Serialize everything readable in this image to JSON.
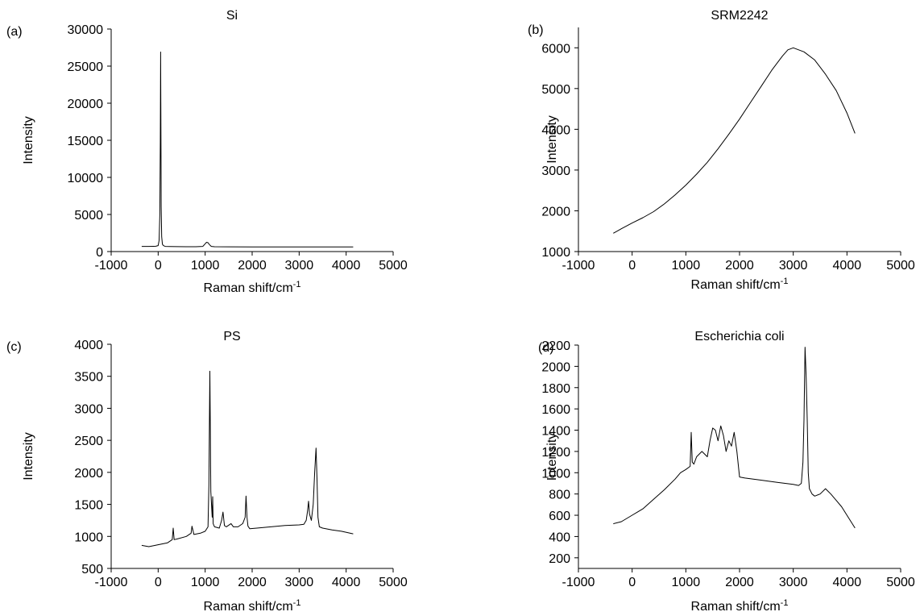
{
  "chart_data": [
    {
      "type": "line",
      "panel_label": "(a)",
      "title": "Si",
      "xlabel": "Raman shift/cm",
      "xlabel_sup": "-1",
      "ylabel": "Intensity",
      "xlim": [
        -1000,
        5000
      ],
      "ylim": [
        0,
        30000
      ],
      "xticks": [
        -1000,
        0,
        1000,
        2000,
        3000,
        4000,
        5000
      ],
      "yticks": [
        0,
        5000,
        10000,
        15000,
        20000,
        25000,
        30000
      ],
      "grid": false,
      "color": "#000000",
      "series": [
        {
          "x": [
            -350,
            -200,
            -100,
            -50,
            0,
            20,
            35,
            45,
            52,
            58,
            65,
            75,
            90,
            110,
            150,
            250,
            400,
            600,
            800,
            950,
            1000,
            1030,
            1060,
            1090,
            1130,
            1200,
            1500,
            2000,
            2500,
            3000,
            3500,
            4000,
            4150
          ],
          "y": [
            700,
            700,
            710,
            720,
            800,
            1500,
            5000,
            15000,
            26900,
            18000,
            6000,
            2000,
            1000,
            800,
            700,
            680,
            660,
            650,
            650,
            700,
            1050,
            1250,
            1200,
            950,
            700,
            650,
            640,
            630,
            630,
            620,
            620,
            620,
            620
          ]
        }
      ]
    },
    {
      "type": "line",
      "panel_label": "(b)",
      "title": "SRM2242",
      "xlabel": "Raman shift/cm",
      "xlabel_sup": "-1",
      "ylabel": "Intensity",
      "xlim": [
        -1000,
        5000
      ],
      "ylim": [
        1000,
        6500
      ],
      "xticks": [
        -1000,
        0,
        1000,
        2000,
        3000,
        4000,
        5000
      ],
      "yticks": [
        1000,
        2000,
        3000,
        4000,
        5000,
        6000
      ],
      "grid": false,
      "color": "#000000",
      "series": [
        {
          "x": [
            -350,
            -200,
            0,
            200,
            400,
            600,
            800,
            1000,
            1200,
            1400,
            1600,
            1800,
            2000,
            2200,
            2400,
            2600,
            2800,
            2900,
            3000,
            3100,
            3200,
            3400,
            3600,
            3800,
            4000,
            4150
          ],
          "y": [
            1450,
            1560,
            1700,
            1830,
            1980,
            2170,
            2390,
            2630,
            2900,
            3190,
            3520,
            3880,
            4250,
            4650,
            5050,
            5450,
            5800,
            5950,
            6000,
            5950,
            5900,
            5700,
            5350,
            4950,
            4400,
            3900
          ]
        }
      ]
    },
    {
      "type": "line",
      "panel_label": "(c)",
      "title": "PS",
      "xlabel": "Raman shift/cm",
      "xlabel_sup": "-1",
      "ylabel": "Intensity",
      "xlim": [
        -1000,
        5000
      ],
      "ylim": [
        500,
        4000
      ],
      "xticks": [
        -1000,
        0,
        1000,
        2000,
        3000,
        4000,
        5000
      ],
      "yticks": [
        500,
        1000,
        1500,
        2000,
        2500,
        3000,
        3500,
        4000
      ],
      "grid": false,
      "color": "#000000",
      "series": [
        {
          "x": [
            -350,
            -200,
            0,
            200,
            300,
            320,
            340,
            400,
            600,
            700,
            720,
            760,
            900,
            1000,
            1060,
            1080,
            1100,
            1120,
            1150,
            1160,
            1170,
            1200,
            1300,
            1350,
            1380,
            1410,
            1450,
            1550,
            1600,
            1700,
            1800,
            1850,
            1870,
            1890,
            1910,
            1950,
            2100,
            2400,
            2700,
            3000,
            3100,
            3150,
            3180,
            3200,
            3220,
            3260,
            3300,
            3330,
            3360,
            3380,
            3400,
            3430,
            3500,
            3700,
            3900,
            4150
          ],
          "y": [
            860,
            840,
            870,
            900,
            950,
            1130,
            950,
            960,
            1000,
            1050,
            1160,
            1030,
            1050,
            1080,
            1150,
            1800,
            3580,
            1700,
            1300,
            1620,
            1200,
            1150,
            1130,
            1250,
            1380,
            1170,
            1150,
            1200,
            1150,
            1150,
            1200,
            1300,
            1630,
            1300,
            1160,
            1120,
            1130,
            1150,
            1170,
            1180,
            1190,
            1250,
            1400,
            1550,
            1350,
            1250,
            1500,
            2000,
            2380,
            1900,
            1300,
            1150,
            1130,
            1100,
            1080,
            1040
          ]
        }
      ]
    },
    {
      "type": "line",
      "panel_label": "(d)",
      "title": "Escherichia coli",
      "xlabel": "Raman shift/cm",
      "xlabel_sup": "-1",
      "ylabel": "Intensity",
      "xlim": [
        -1000,
        5000
      ],
      "ylim": [
        100,
        2200
      ],
      "xticks": [
        -1000,
        0,
        1000,
        2000,
        3000,
        4000,
        5000
      ],
      "yticks": [
        200,
        400,
        600,
        800,
        1000,
        1200,
        1400,
        1600,
        1800,
        2000,
        2200
      ],
      "grid": false,
      "color": "#000000",
      "series": [
        {
          "x": [
            -350,
            -200,
            0,
            200,
            400,
            600,
            800,
            900,
            1000,
            1080,
            1100,
            1120,
            1150,
            1200,
            1300,
            1400,
            1450,
            1500,
            1550,
            1600,
            1650,
            1700,
            1750,
            1800,
            1850,
            1900,
            1950,
            2000,
            2100,
            2400,
            2700,
            3000,
            3100,
            3150,
            3180,
            3200,
            3220,
            3240,
            3260,
            3280,
            3300,
            3350,
            3400,
            3500,
            3600,
            3700,
            3800,
            3900,
            4000,
            4150
          ],
          "y": [
            520,
            540,
            600,
            660,
            750,
            840,
            940,
            1000,
            1030,
            1060,
            1380,
            1100,
            1080,
            1150,
            1200,
            1150,
            1300,
            1420,
            1400,
            1300,
            1440,
            1350,
            1200,
            1300,
            1250,
            1380,
            1200,
            960,
            950,
            930,
            910,
            890,
            880,
            900,
            1100,
            1500,
            2180,
            1900,
            1500,
            1000,
            850,
            800,
            780,
            800,
            850,
            800,
            740,
            680,
            600,
            480
          ]
        }
      ]
    }
  ]
}
